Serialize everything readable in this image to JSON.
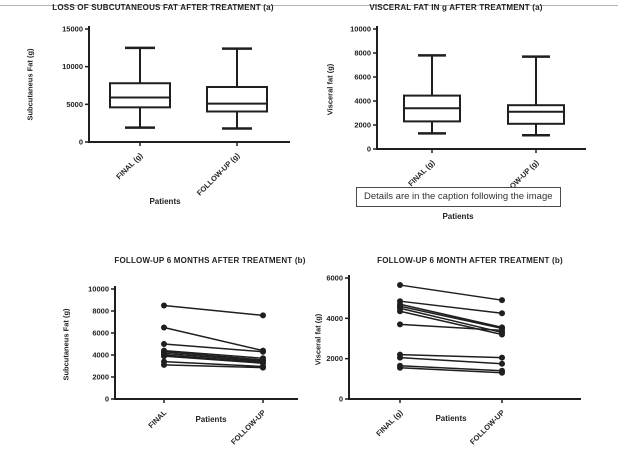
{
  "colors": {
    "ink": "#1f1f1f",
    "title": "#222222",
    "topline": "#b3b3b3",
    "tooltip_border": "#4a4a4a",
    "tooltip_text_color": "#333333"
  },
  "overlay": {
    "tooltip_text": "Details are in the caption following the image"
  },
  "chart_data": [
    {
      "type": "box",
      "title": "LOSS OF SUBCUTANEOUS FAT  AFTER TREATMENT (a)",
      "ylabel": "Subcutaneus Fat (g)",
      "xlabel": "Patients",
      "categories": [
        "FINAL (g)",
        "FOLLOW-UP (g)"
      ],
      "ylim": [
        0,
        15000
      ],
      "yticks": [
        0,
        5000,
        10000,
        15000
      ],
      "grid": false,
      "series": [
        {
          "name": "FINAL (g)",
          "min": 1900,
          "q1": 4600,
          "median": 5900,
          "q3": 7800,
          "max": 12500
        },
        {
          "name": "FOLLOW-UP (g)",
          "min": 1800,
          "q1": 4050,
          "median": 5100,
          "q3": 7300,
          "max": 12400
        }
      ]
    },
    {
      "type": "box",
      "title": "VISCERAL FAT IN g  AFTER TREATMENT (a)",
      "ylabel": "Visceral fat (g)",
      "xlabel": "Patients",
      "categories": [
        "FINAL (g)",
        "FOLLOW-UP (g)"
      ],
      "ylim": [
        0,
        10000
      ],
      "yticks": [
        0,
        2000,
        4000,
        6000,
        8000,
        10000
      ],
      "grid": false,
      "series": [
        {
          "name": "FINAL (g)",
          "min": 1300,
          "q1": 2300,
          "median": 3400,
          "q3": 4450,
          "max": 7800
        },
        {
          "name": "FOLLOW-UP (g)",
          "min": 1150,
          "q1": 2100,
          "median": 3100,
          "q3": 3650,
          "max": 7700
        }
      ]
    },
    {
      "type": "paired",
      "title": "FOLLOW-UP 6 MONTHS AFTER TREATMENT (b)",
      "ylabel": "Subcutaneus Fat (g)",
      "xlabel": "Patients",
      "categories": [
        "FINAL",
        "FOLLOW-UP"
      ],
      "ylim": [
        0,
        10000
      ],
      "yticks": [
        0,
        2000,
        4000,
        6000,
        8000,
        10000
      ],
      "grid": false,
      "pairs": [
        [
          8500,
          7600
        ],
        [
          6500,
          4400
        ],
        [
          5000,
          4300
        ],
        [
          4400,
          3700
        ],
        [
          4300,
          3550
        ],
        [
          4150,
          3450
        ],
        [
          4000,
          3350
        ],
        [
          3900,
          3250
        ],
        [
          3400,
          2950
        ],
        [
          3100,
          2850
        ]
      ]
    },
    {
      "type": "paired",
      "title": "FOLLOW-UP 6 MONTH AFTER TREATMENT (b)",
      "ylabel": "Visceral fat (g)",
      "xlabel": "Patients",
      "categories": [
        "FINAL (g)",
        "FOLLOW-UP"
      ],
      "ylim": [
        0,
        6000
      ],
      "yticks": [
        0,
        2000,
        4000,
        6000
      ],
      "grid": false,
      "pairs": [
        [
          5650,
          4900
        ],
        [
          4850,
          4250
        ],
        [
          4700,
          3550
        ],
        [
          4600,
          3500
        ],
        [
          4500,
          3300
        ],
        [
          4350,
          3200
        ],
        [
          3700,
          3400
        ],
        [
          2200,
          2050
        ],
        [
          2050,
          1750
        ],
        [
          1650,
          1400
        ],
        [
          1550,
          1300
        ]
      ]
    }
  ]
}
